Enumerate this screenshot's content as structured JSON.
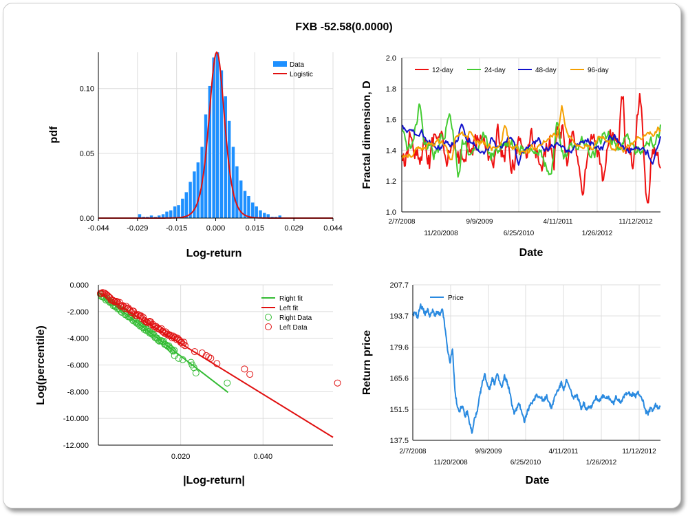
{
  "page": {
    "title": "FXB -52.58(0.0000)"
  },
  "colors": {
    "histogram_bar": "#1e90ff",
    "logistic": "#e01010",
    "d12": "#ee1111",
    "d24": "#44cc33",
    "d48": "#1111cc",
    "d96": "#f5a000",
    "right_fit": "#33bb33",
    "left_fit": "#e01010",
    "price": "#2a8ae0",
    "grid": "#dcdcdc"
  },
  "chart_data": [
    {
      "id": "histogram",
      "type": "bar",
      "xlabel": "Log-return",
      "ylabel": "pdf",
      "xlim": [
        -0.044,
        0.044
      ],
      "ylim": [
        0,
        0.128
      ],
      "xticks": [
        "-0.044",
        "-0.029",
        "-0.015",
        "0.000",
        "0.015",
        "0.029",
        "0.044"
      ],
      "yticks": [
        "0.00",
        "0.05",
        "0.10"
      ],
      "legend": [
        "Data",
        "Logistic"
      ],
      "legend_position": "top-right",
      "bin_width": 0.00146,
      "bins": [
        {
          "x": -0.0285,
          "v": 0.003
        },
        {
          "x": -0.027,
          "v": 0.001
        },
        {
          "x": -0.0256,
          "v": 0.001
        },
        {
          "x": -0.0241,
          "v": 0.002
        },
        {
          "x": -0.0226,
          "v": 0.001
        },
        {
          "x": -0.0212,
          "v": 0.002
        },
        {
          "x": -0.0197,
          "v": 0.003
        },
        {
          "x": -0.0183,
          "v": 0.005
        },
        {
          "x": -0.0168,
          "v": 0.006
        },
        {
          "x": -0.0153,
          "v": 0.009
        },
        {
          "x": -0.0139,
          "v": 0.01
        },
        {
          "x": -0.0124,
          "v": 0.015
        },
        {
          "x": -0.011,
          "v": 0.02
        },
        {
          "x": -0.0095,
          "v": 0.028
        },
        {
          "x": -0.008,
          "v": 0.036
        },
        {
          "x": -0.0066,
          "v": 0.043
        },
        {
          "x": -0.0051,
          "v": 0.055
        },
        {
          "x": -0.0037,
          "v": 0.08
        },
        {
          "x": -0.0022,
          "v": 0.102
        },
        {
          "x": -0.0007,
          "v": 0.124
        },
        {
          "x": 0.0007,
          "v": 0.128
        },
        {
          "x": 0.0022,
          "v": 0.114
        },
        {
          "x": 0.0037,
          "v": 0.094
        },
        {
          "x": 0.0051,
          "v": 0.075
        },
        {
          "x": 0.0066,
          "v": 0.055
        },
        {
          "x": 0.008,
          "v": 0.04
        },
        {
          "x": 0.0095,
          "v": 0.029
        },
        {
          "x": 0.011,
          "v": 0.021
        },
        {
          "x": 0.0124,
          "v": 0.017
        },
        {
          "x": 0.0139,
          "v": 0.012
        },
        {
          "x": 0.0153,
          "v": 0.009
        },
        {
          "x": 0.0168,
          "v": 0.006
        },
        {
          "x": 0.0183,
          "v": 0.004
        },
        {
          "x": 0.0197,
          "v": 0.003
        },
        {
          "x": 0.0212,
          "v": 0.001
        },
        {
          "x": 0.0226,
          "v": 0.001
        },
        {
          "x": 0.0241,
          "v": 0.002
        }
      ],
      "logistic": {
        "mu": 0.0004,
        "s": 0.00195
      }
    },
    {
      "id": "fractal",
      "type": "line",
      "xlabel": "Date",
      "ylabel": "Fractal dimension, D",
      "ylim": [
        1.0,
        2.0
      ],
      "yticks": [
        "1.0",
        "1.2",
        "1.4",
        "1.6",
        "1.8",
        "2.0"
      ],
      "xticks_top": [
        "2/7/2008",
        "9/9/2009",
        "4/11/2011",
        "11/12/2012"
      ],
      "xticks_bottom": [
        "11/20/2008",
        "6/25/2010",
        "1/26/2012"
      ],
      "legend_position": "top-left",
      "series": [
        {
          "name": "12-day",
          "seed": 11,
          "base": 1.4,
          "amp": 0.2,
          "smooth": 2,
          "excursions": [
            [
              0.3,
              0.05
            ],
            [
              0.92,
              0.55
            ],
            [
              0.85,
              0.45
            ],
            [
              0.6,
              0.3
            ],
            [
              0.7,
              -0.25
            ],
            [
              0.95,
              -0.28
            ]
          ]
        },
        {
          "name": "24-day",
          "seed": 23,
          "base": 1.42,
          "amp": 0.18,
          "smooth": 4,
          "excursions": [
            [
              0.07,
              0.35
            ],
            [
              0.18,
              0.35
            ],
            [
              0.6,
              0.35
            ],
            [
              0.22,
              -0.35
            ]
          ]
        },
        {
          "name": "48-day",
          "seed": 37,
          "base": 1.44,
          "amp": 0.12,
          "smooth": 8,
          "excursions": [
            [
              0.23,
              0.22
            ],
            [
              0.35,
              0.15
            ],
            [
              0.45,
              -0.2
            ],
            [
              0.97,
              -0.15
            ]
          ]
        },
        {
          "name": "96-day",
          "seed": 53,
          "base": 1.45,
          "amp": 0.1,
          "smooth": 14,
          "excursions": [
            [
              0.19,
              -0.28
            ],
            [
              0.4,
              0.25
            ],
            [
              0.62,
              0.25
            ]
          ]
        }
      ]
    },
    {
      "id": "tail",
      "type": "scatter",
      "xlabel": "|Log-return|",
      "ylabel": "Log(percentile)",
      "xlim": [
        0,
        0.057
      ],
      "ylim": [
        -12,
        0
      ],
      "xticks": [
        "0.020",
        "0.040"
      ],
      "yticks": [
        "0.000",
        "-2.000",
        "-4.000",
        "-6.000",
        "-8.000",
        "-10.000",
        "-12.000"
      ],
      "legend": [
        "Right fit",
        "Left fit",
        "Right Data",
        "Left Data"
      ],
      "legend_position": "top-right",
      "right_fit": [
        [
          0.0,
          -0.6
        ],
        [
          0.0315,
          -8.05
        ]
      ],
      "left_fit": [
        [
          0.0,
          -0.6
        ],
        [
          0.0585,
          -11.7
        ]
      ],
      "right_data": [
        [
          0.0185,
          -5.3
        ],
        [
          0.0195,
          -5.5
        ],
        [
          0.0205,
          -5.6
        ],
        [
          0.0225,
          -5.8
        ],
        [
          0.0228,
          -6.0
        ],
        [
          0.0232,
          -6.2
        ],
        [
          0.0237,
          -6.6
        ],
        [
          0.0313,
          -7.35
        ]
      ],
      "left_data": [
        [
          0.0234,
          -5.0
        ],
        [
          0.0252,
          -5.1
        ],
        [
          0.0262,
          -5.3
        ],
        [
          0.0268,
          -5.4
        ],
        [
          0.0273,
          -5.5
        ],
        [
          0.0288,
          -5.9
        ],
        [
          0.0355,
          -6.3
        ],
        [
          0.0368,
          -6.7
        ],
        [
          0.0581,
          -7.35
        ]
      ]
    },
    {
      "id": "price",
      "type": "line",
      "xlabel": "Date",
      "ylabel": "Return price",
      "ylim": [
        137.5,
        207.7
      ],
      "yticks": [
        "137.5",
        "151.5",
        "165.6",
        "179.6",
        "193.7",
        "207.7"
      ],
      "xticks_top": [
        "2/7/2008",
        "9/9/2009",
        "4/11/2011",
        "11/12/2012"
      ],
      "xticks_bottom": [
        "11/20/2008",
        "6/25/2010",
        "1/26/2012"
      ],
      "legend_position": "top-left",
      "series": [
        {
          "name": "Price",
          "values": [
            [
              0.0,
              193.5
            ],
            [
              0.01,
              195.5
            ],
            [
              0.02,
              192.8
            ],
            [
              0.03,
              198.5
            ],
            [
              0.04,
              197.0
            ],
            [
              0.05,
              194.5
            ],
            [
              0.06,
              196.5
            ],
            [
              0.07,
              193.5
            ],
            [
              0.08,
              196.0
            ],
            [
              0.09,
              194.0
            ],
            [
              0.1,
              195.5
            ],
            [
              0.11,
              193.8
            ],
            [
              0.12,
              196.8
            ],
            [
              0.13,
              188.0
            ],
            [
              0.14,
              179.0
            ],
            [
              0.15,
              172.0
            ],
            [
              0.16,
              179.5
            ],
            [
              0.17,
              160.0
            ],
            [
              0.18,
              152.0
            ],
            [
              0.19,
              151.0
            ],
            [
              0.2,
              153.5
            ],
            [
              0.21,
              148.0
            ],
            [
              0.22,
              150.5
            ],
            [
              0.23,
              145.0
            ],
            [
              0.24,
              140.5
            ],
            [
              0.25,
              148.0
            ],
            [
              0.26,
              150.0
            ],
            [
              0.27,
              157.5
            ],
            [
              0.28,
              163.0
            ],
            [
              0.29,
              167.5
            ],
            [
              0.3,
              163.0
            ],
            [
              0.31,
              160.5
            ],
            [
              0.32,
              165.5
            ],
            [
              0.33,
              163.0
            ],
            [
              0.34,
              167.5
            ],
            [
              0.35,
              164.0
            ],
            [
              0.36,
              161.0
            ],
            [
              0.37,
              166.5
            ],
            [
              0.38,
              164.0
            ],
            [
              0.39,
              160.0
            ],
            [
              0.4,
              154.0
            ],
            [
              0.41,
              149.5
            ],
            [
              0.42,
              152.0
            ],
            [
              0.43,
              154.0
            ],
            [
              0.44,
              150.5
            ],
            [
              0.45,
              146.0
            ],
            [
              0.46,
              149.5
            ],
            [
              0.47,
              152.5
            ],
            [
              0.48,
              154.5
            ],
            [
              0.49,
              156.0
            ],
            [
              0.5,
              158.5
            ],
            [
              0.51,
              157.0
            ],
            [
              0.52,
              156.5
            ],
            [
              0.53,
              155.0
            ],
            [
              0.54,
              158.0
            ],
            [
              0.55,
              154.5
            ],
            [
              0.56,
              152.0
            ],
            [
              0.57,
              156.0
            ],
            [
              0.58,
              159.0
            ],
            [
              0.59,
              161.0
            ],
            [
              0.6,
              163.5
            ],
            [
              0.61,
              160.5
            ],
            [
              0.62,
              164.5
            ],
            [
              0.63,
              162.0
            ],
            [
              0.64,
              159.0
            ],
            [
              0.65,
              156.0
            ],
            [
              0.66,
              158.5
            ],
            [
              0.67,
              155.5
            ],
            [
              0.68,
              152.0
            ],
            [
              0.69,
              154.5
            ],
            [
              0.7,
              151.5
            ],
            [
              0.71,
              153.0
            ],
            [
              0.72,
              152.5
            ],
            [
              0.73,
              155.0
            ],
            [
              0.74,
              157.0
            ],
            [
              0.75,
              155.5
            ],
            [
              0.76,
              156.5
            ],
            [
              0.77,
              157.5
            ],
            [
              0.78,
              156.0
            ],
            [
              0.79,
              157.0
            ],
            [
              0.8,
              155.5
            ],
            [
              0.81,
              154.0
            ],
            [
              0.82,
              157.0
            ],
            [
              0.83,
              156.0
            ],
            [
              0.84,
              155.0
            ],
            [
              0.85,
              156.5
            ],
            [
              0.86,
              158.5
            ],
            [
              0.87,
              159.5
            ],
            [
              0.88,
              157.5
            ],
            [
              0.89,
              158.5
            ],
            [
              0.9,
              157.5
            ],
            [
              0.91,
              159.0
            ],
            [
              0.92,
              157.5
            ],
            [
              0.93,
              155.0
            ],
            [
              0.94,
              150.5
            ],
            [
              0.95,
              149.5
            ],
            [
              0.96,
              152.0
            ],
            [
              0.97,
              151.0
            ],
            [
              0.98,
              153.5
            ],
            [
              0.99,
              152.0
            ],
            [
              1.0,
              153.5
            ]
          ]
        }
      ]
    }
  ]
}
